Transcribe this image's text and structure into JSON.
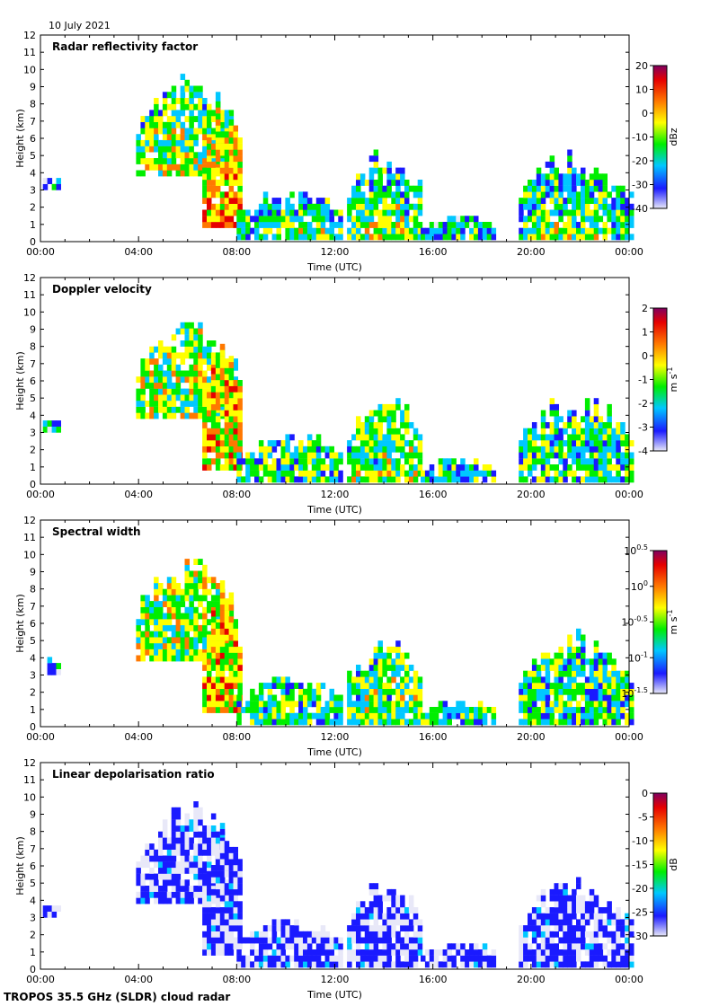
{
  "date": "10 July 2021",
  "footer": "TROPOS 35.5 GHz (SLDR) cloud radar",
  "chart_data": [
    {
      "type": "heatmap",
      "title": "Radar reflectivity factor",
      "xlabel": "Time (UTC)",
      "ylabel": "Height (km)",
      "xticks": [
        "00:00",
        "04:00",
        "08:00",
        "12:00",
        "16:00",
        "20:00",
        "00:00"
      ],
      "xlim": [
        0,
        24
      ],
      "ylim": [
        0,
        12
      ],
      "yticks": [
        "0",
        "1",
        "2",
        "3",
        "4",
        "5",
        "6",
        "7",
        "8",
        "9",
        "10",
        "11",
        "12"
      ],
      "colorbar": {
        "label": "dBz",
        "range": [
          -40,
          20
        ],
        "ticks": [
          "-40",
          "-30",
          "-20",
          "-10",
          "0",
          "10",
          "20"
        ],
        "scale": "linear"
      }
    },
    {
      "type": "heatmap",
      "title": "Doppler velocity",
      "xlabel": "Time (UTC)",
      "ylabel": "Height (km)",
      "xticks": [
        "00:00",
        "04:00",
        "08:00",
        "12:00",
        "16:00",
        "20:00",
        "00:00"
      ],
      "xlim": [
        0,
        24
      ],
      "ylim": [
        0,
        12
      ],
      "yticks": [
        "0",
        "1",
        "2",
        "3",
        "4",
        "5",
        "6",
        "7",
        "8",
        "9",
        "10",
        "11",
        "12"
      ],
      "colorbar": {
        "label": "m s",
        "label_sup": "-1",
        "range": [
          -4,
          2
        ],
        "ticks": [
          "-4",
          "-3",
          "-2",
          "-1",
          "0",
          "1",
          "2"
        ],
        "scale": "linear"
      }
    },
    {
      "type": "heatmap",
      "title": "Spectral width",
      "xlabel": "Time (UTC)",
      "ylabel": "Height (km)",
      "xticks": [
        "00:00",
        "04:00",
        "08:00",
        "12:00",
        "16:00",
        "20:00",
        "00:00"
      ],
      "xlim": [
        0,
        24
      ],
      "ylim": [
        0,
        12
      ],
      "yticks": [
        "0",
        "1",
        "2",
        "3",
        "4",
        "5",
        "6",
        "7",
        "8",
        "9",
        "10",
        "11",
        "12"
      ],
      "colorbar": {
        "label": "m s",
        "label_sup": "-1",
        "range": [
          -1.5,
          0.5
        ],
        "scale": "log",
        "ticks": [
          {
            "base": "10",
            "exp": "-1.5"
          },
          {
            "base": "10",
            "exp": "-1"
          },
          {
            "base": "10",
            "exp": "-0.5"
          },
          {
            "base": "10",
            "exp": "0"
          },
          {
            "base": "10",
            "exp": "0.5"
          }
        ]
      }
    },
    {
      "type": "heatmap",
      "title": "Linear depolarisation ratio",
      "xlabel": "Time (UTC)",
      "ylabel": "Height (km)",
      "xticks": [
        "00:00",
        "04:00",
        "08:00",
        "12:00",
        "16:00",
        "20:00",
        "00:00"
      ],
      "xlim": [
        0,
        24
      ],
      "ylim": [
        0,
        12
      ],
      "yticks": [
        "0",
        "1",
        "2",
        "3",
        "4",
        "5",
        "6",
        "7",
        "8",
        "9",
        "10",
        "11",
        "12"
      ],
      "colorbar": {
        "label": "dB",
        "range": [
          -30,
          0
        ],
        "ticks": [
          "-30",
          "-25",
          "-20",
          "-15",
          "-10",
          "-5",
          "0"
        ],
        "scale": "linear"
      }
    }
  ],
  "colormap": [
    "#e8e8f8",
    "#1a1aff",
    "#00c8ff",
    "#00ee00",
    "#ffff00",
    "#ff7800",
    "#e60000",
    "#800060"
  ]
}
